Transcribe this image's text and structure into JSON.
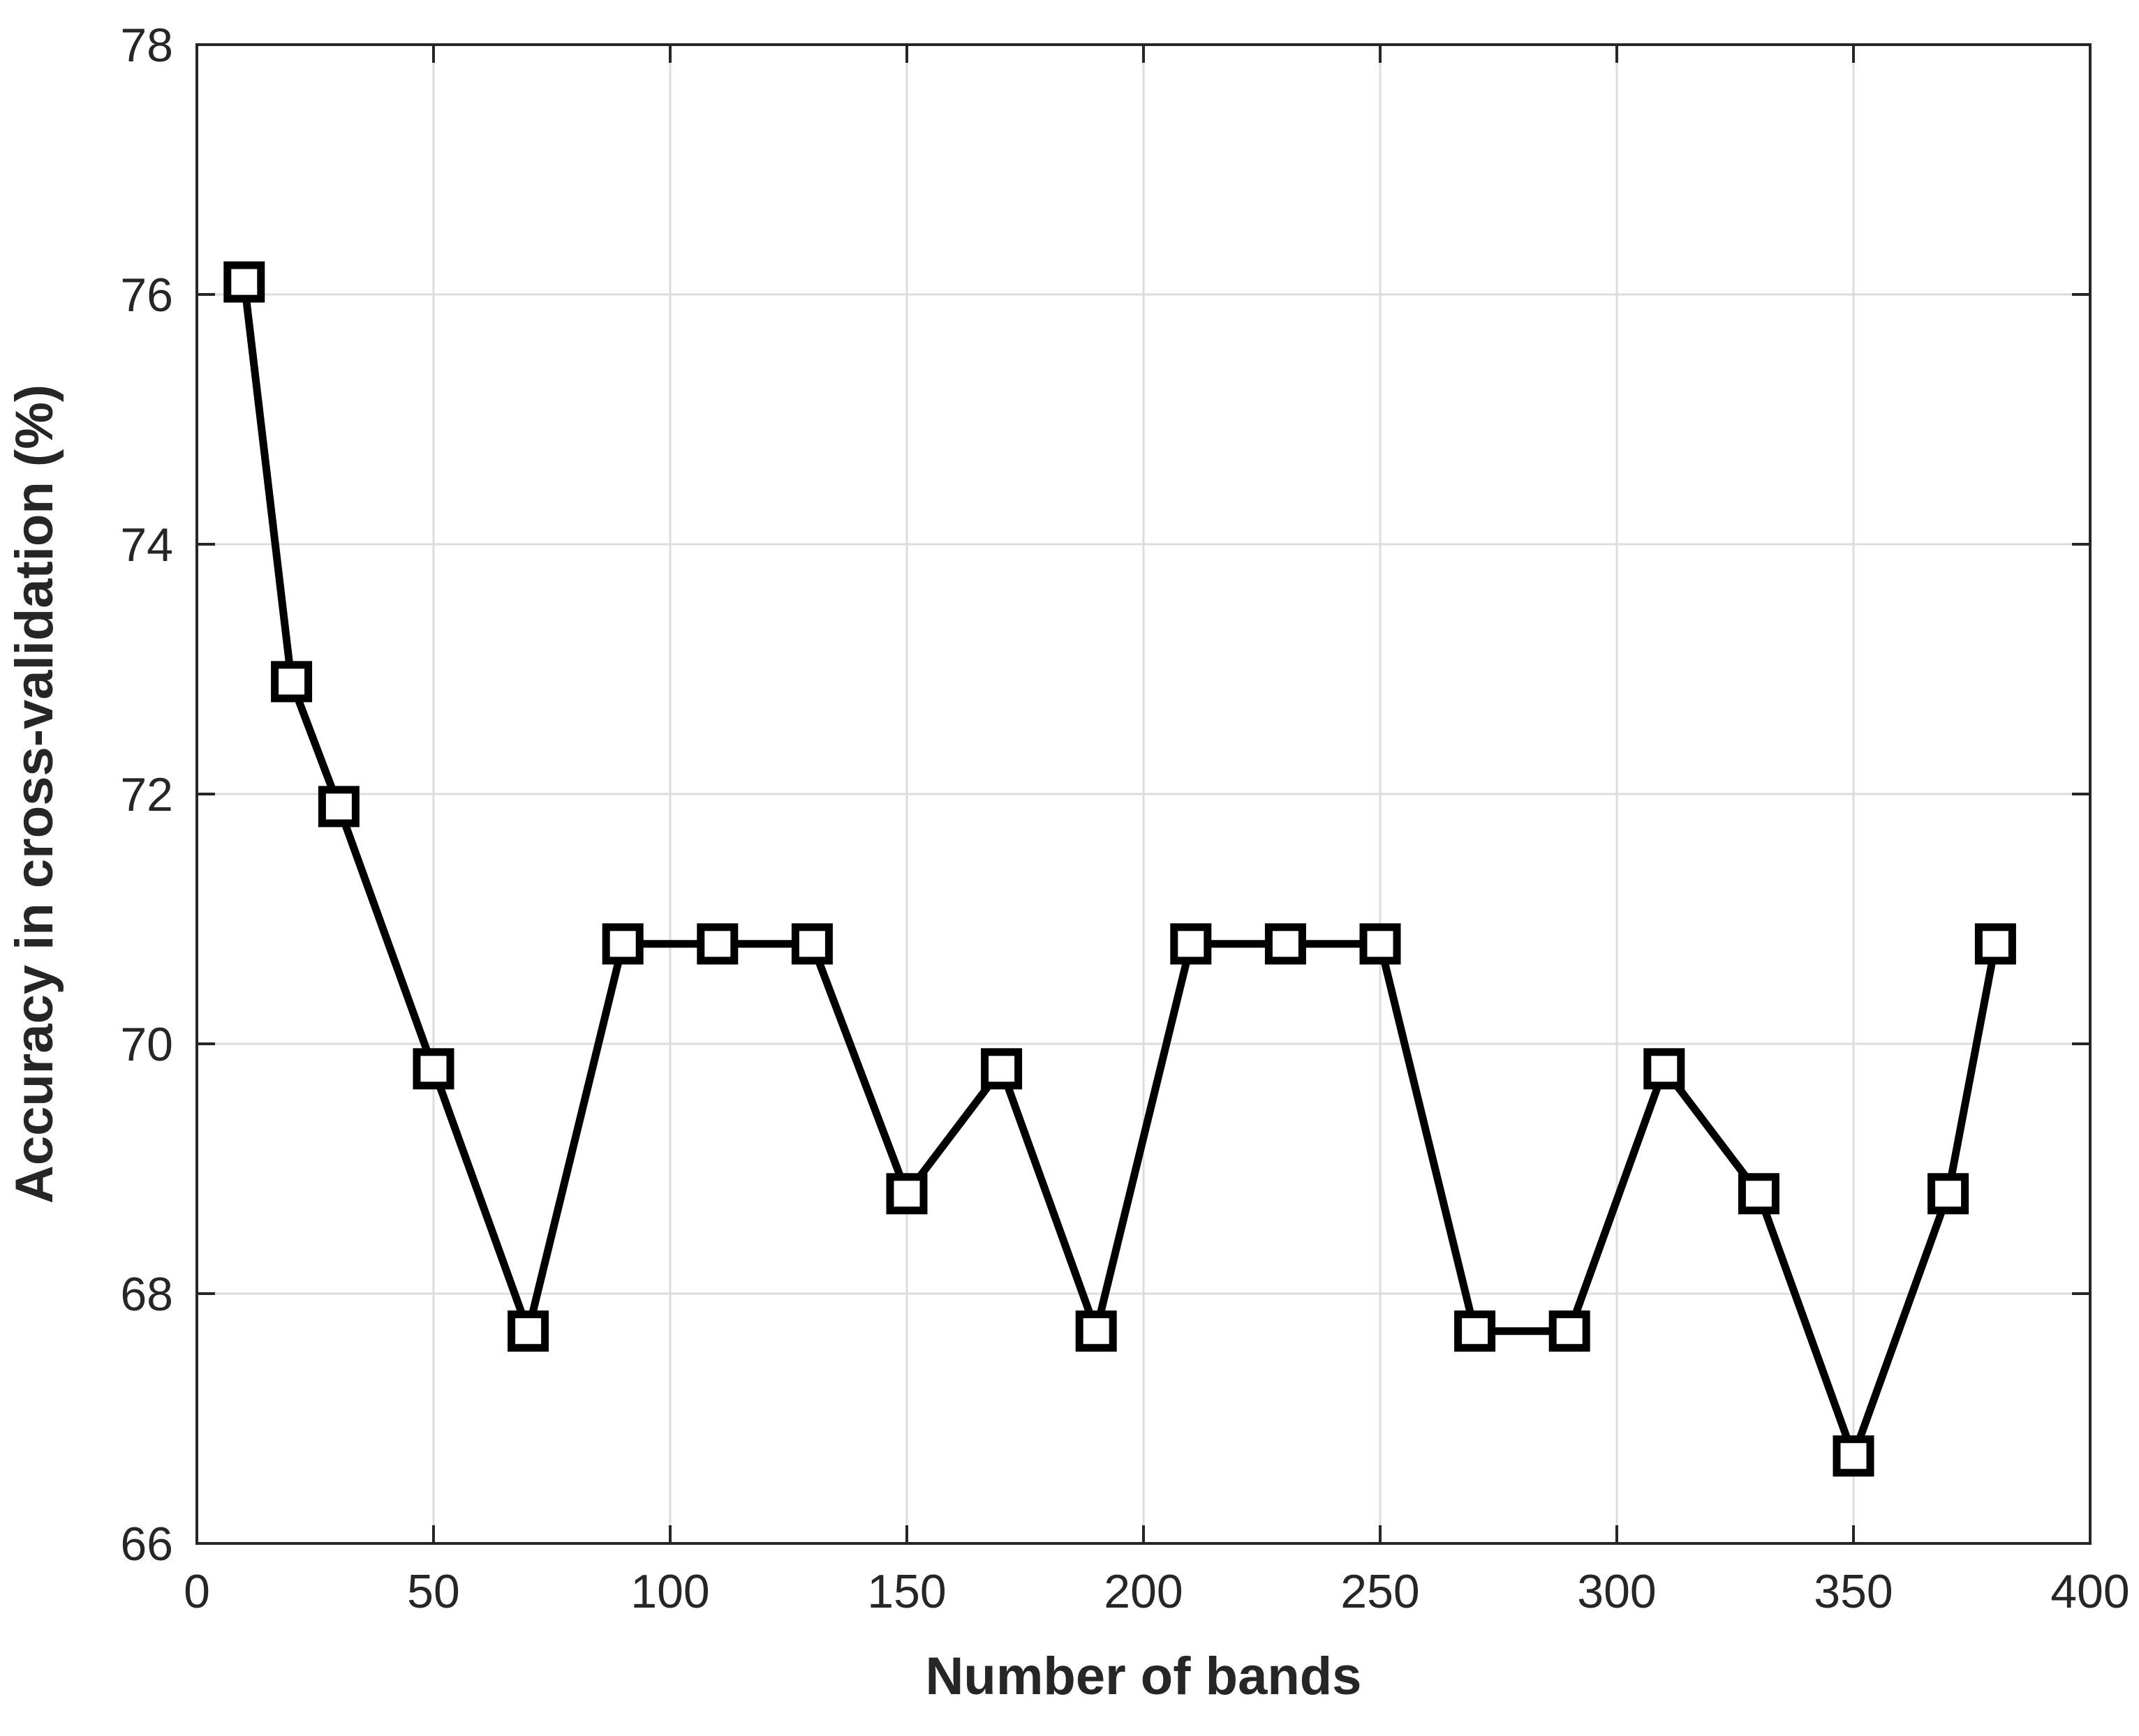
{
  "chart_data": {
    "type": "line",
    "title": "",
    "xlabel": "Number of bands",
    "ylabel": "Accuracy in cross-validation (%)",
    "xlim": [
      0,
      400
    ],
    "ylim": [
      66,
      78
    ],
    "xticks": [
      "0",
      "50",
      "100",
      "150",
      "200",
      "250",
      "300",
      "350",
      "400"
    ],
    "yticks": [
      "66",
      "68",
      "70",
      "72",
      "74",
      "76",
      "78"
    ],
    "grid": true,
    "legend": "none",
    "series": [
      {
        "color": "#000000",
        "marker": "square",
        "x": [
          10,
          20,
          30,
          50,
          70,
          90,
          110,
          130,
          150,
          170,
          190,
          210,
          230,
          250,
          270,
          290,
          310,
          330,
          350,
          370,
          380
        ],
        "y": [
          76.1,
          72.9,
          71.9,
          69.8,
          67.7,
          70.8,
          70.8,
          70.8,
          68.8,
          69.8,
          67.7,
          70.8,
          70.8,
          70.8,
          67.7,
          67.7,
          69.8,
          68.8,
          66.7,
          68.8,
          70.8
        ]
      }
    ]
  }
}
